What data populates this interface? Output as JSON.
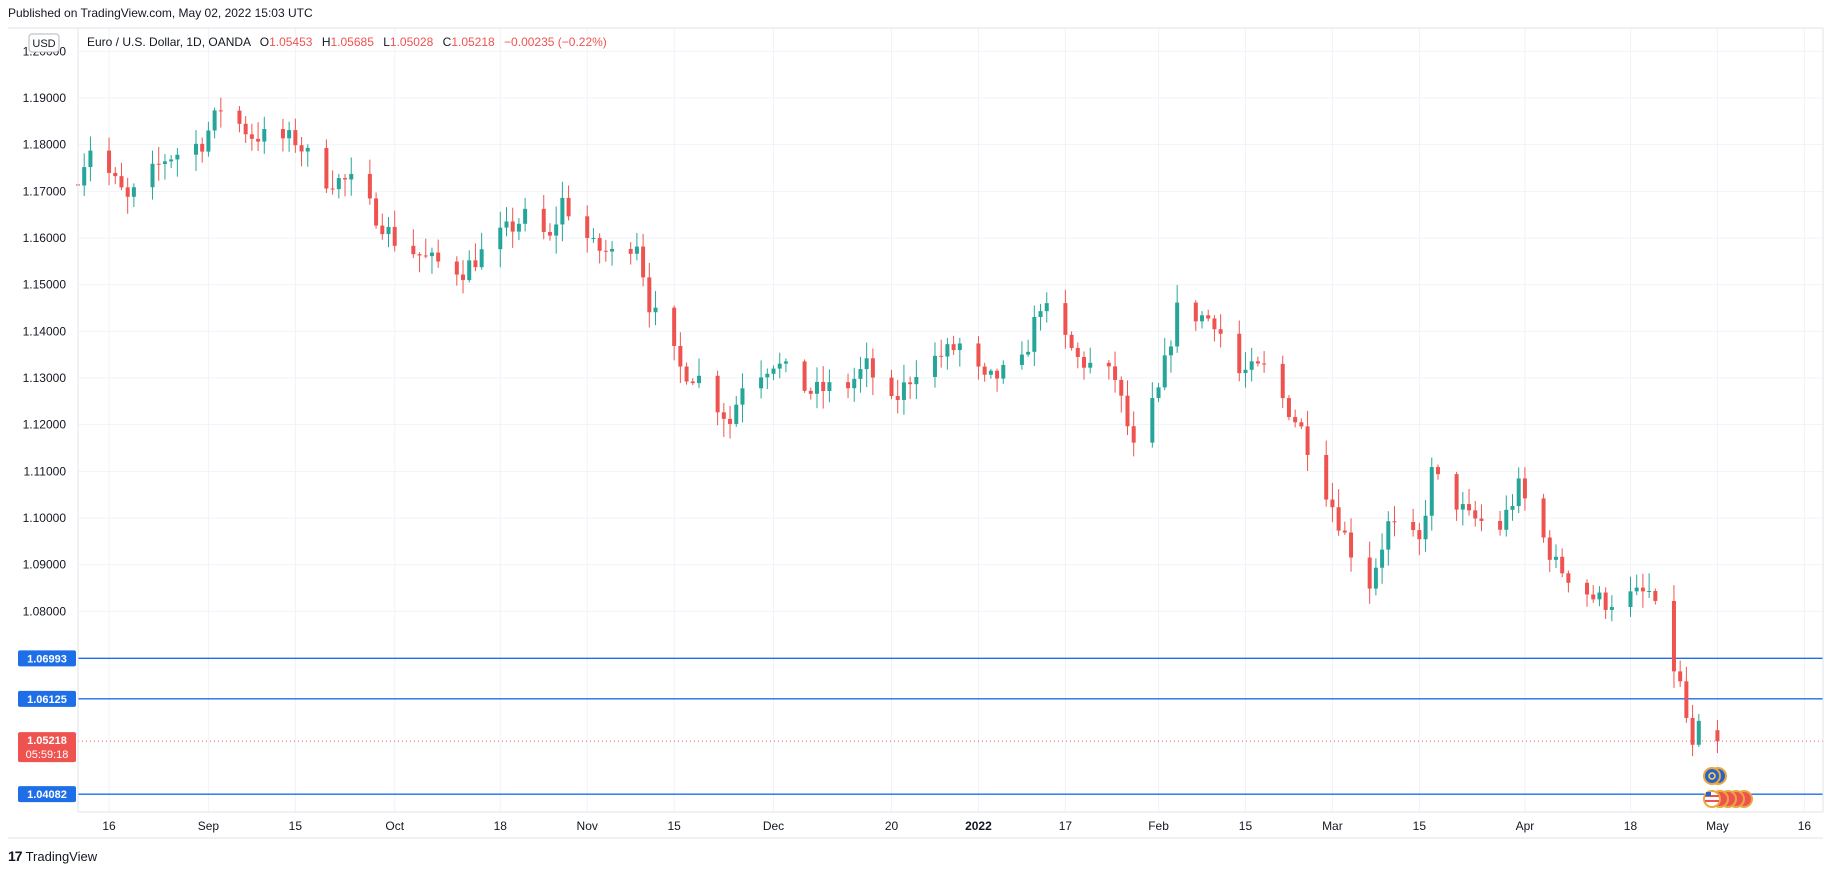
{
  "published": "Published on TradingView.com, May 02, 2022 15:03 UTC",
  "brand": "TradingView",
  "chart_data": {
    "type": "candlestick",
    "symbol_title": "Euro / U.S. Dollar, 1D, OANDA",
    "currency_badge": "USD",
    "ohlc_header": {
      "o_label": "O",
      "o": "1.05453",
      "h_label": "H",
      "h": "1.05685",
      "l_label": "L",
      "l": "1.05028",
      "c_label": "C",
      "c": "1.05218",
      "change": "−0.00235 (−0.22%)"
    },
    "ylim": [
      1.037,
      1.205
    ],
    "yticks": [
      "1.20000",
      "1.19000",
      "1.18000",
      "1.17000",
      "1.16000",
      "1.15000",
      "1.14000",
      "1.13000",
      "1.12000",
      "1.11000",
      "1.10000",
      "1.09000",
      "1.08000"
    ],
    "xlim": [
      "2021-08-11",
      "2022-05-19"
    ],
    "xticks": [
      {
        "date": "2021-08-16",
        "label": "16"
      },
      {
        "date": "2021-09-01",
        "label": "Sep"
      },
      {
        "date": "2021-09-15",
        "label": "15"
      },
      {
        "date": "2021-10-01",
        "label": "Oct"
      },
      {
        "date": "2021-10-18",
        "label": "18"
      },
      {
        "date": "2021-11-01",
        "label": "Nov"
      },
      {
        "date": "2021-11-15",
        "label": "15"
      },
      {
        "date": "2021-12-01",
        "label": "Dec"
      },
      {
        "date": "2021-12-20",
        "label": "20"
      },
      {
        "date": "2022-01-03",
        "label": "2022",
        "bold": true
      },
      {
        "date": "2022-01-17",
        "label": "17"
      },
      {
        "date": "2022-02-01",
        "label": "Feb"
      },
      {
        "date": "2022-02-15",
        "label": "15"
      },
      {
        "date": "2022-03-01",
        "label": "Mar"
      },
      {
        "date": "2022-03-15",
        "label": "15"
      },
      {
        "date": "2022-04-01",
        "label": "Apr"
      },
      {
        "date": "2022-04-18",
        "label": "18"
      },
      {
        "date": "2022-05-02",
        "label": "May"
      },
      {
        "date": "2022-05-16",
        "label": "16"
      }
    ],
    "horizontal_lines": [
      {
        "value": 1.06993,
        "label": "1.06993",
        "color": "#1e6ee8"
      },
      {
        "value": 1.06125,
        "label": "1.06125",
        "color": "#1e6ee8"
      },
      {
        "value": 1.04082,
        "label": "1.04082",
        "color": "#1e6ee8"
      }
    ],
    "last_price": {
      "value": 1.05218,
      "label": "1.05218",
      "countdown": "05:59:18",
      "color": "#ef5350"
    },
    "colors": {
      "up": "#26a69a",
      "down": "#ef5350",
      "grid": "#f0f3fa",
      "axis": "#e0e3eb",
      "hline": "#1e6ee8"
    },
    "anchors": [
      {
        "date": "2021-08-11",
        "close": 1.1735
      },
      {
        "date": "2021-08-13",
        "close": 1.1795
      },
      {
        "date": "2021-08-19",
        "close": 1.168
      },
      {
        "date": "2021-08-25",
        "close": 1.177
      },
      {
        "date": "2021-08-31",
        "close": 1.1805
      },
      {
        "date": "2021-09-03",
        "close": 1.188
      },
      {
        "date": "2021-09-08",
        "close": 1.182
      },
      {
        "date": "2021-09-15",
        "close": 1.181
      },
      {
        "date": "2021-09-20",
        "close": 1.1725
      },
      {
        "date": "2021-09-24",
        "close": 1.172
      },
      {
        "date": "2021-10-01",
        "close": 1.1595
      },
      {
        "date": "2021-10-06",
        "close": 1.1555
      },
      {
        "date": "2021-10-12",
        "close": 1.153
      },
      {
        "date": "2021-10-18",
        "close": 1.1605
      },
      {
        "date": "2021-10-22",
        "close": 1.1645
      },
      {
        "date": "2021-10-26",
        "close": 1.1595
      },
      {
        "date": "2021-10-28",
        "close": 1.168
      },
      {
        "date": "2021-11-02",
        "close": 1.158
      },
      {
        "date": "2021-11-05",
        "close": 1.1565
      },
      {
        "date": "2021-11-09",
        "close": 1.1595
      },
      {
        "date": "2021-11-11",
        "close": 1.146
      },
      {
        "date": "2021-11-16",
        "close": 1.132
      },
      {
        "date": "2021-11-19",
        "close": 1.13
      },
      {
        "date": "2021-11-24",
        "close": 1.1205
      },
      {
        "date": "2021-11-26",
        "close": 1.129
      },
      {
        "date": "2021-12-01",
        "close": 1.1335
      },
      {
        "date": "2021-12-07",
        "close": 1.127
      },
      {
        "date": "2021-12-13",
        "close": 1.1285
      },
      {
        "date": "2021-12-16",
        "close": 1.1325
      },
      {
        "date": "2021-12-20",
        "close": 1.124
      },
      {
        "date": "2021-12-24",
        "close": 1.132
      },
      {
        "date": "2021-12-31",
        "close": 1.137
      },
      {
        "date": "2022-01-04",
        "close": 1.129
      },
      {
        "date": "2022-01-10",
        "close": 1.133
      },
      {
        "date": "2022-01-13",
        "close": 1.146
      },
      {
        "date": "2022-01-19",
        "close": 1.134
      },
      {
        "date": "2022-01-25",
        "close": 1.13
      },
      {
        "date": "2022-01-28",
        "close": 1.1145
      },
      {
        "date": "2022-02-01",
        "close": 1.127
      },
      {
        "date": "2022-02-04",
        "close": 1.1445
      },
      {
        "date": "2022-02-10",
        "close": 1.1425
      },
      {
        "date": "2022-02-14",
        "close": 1.131
      },
      {
        "date": "2022-02-18",
        "close": 1.132
      },
      {
        "date": "2022-02-24",
        "close": 1.119
      },
      {
        "date": "2022-03-04",
        "close": 1.093
      },
      {
        "date": "2022-03-07",
        "close": 1.086
      },
      {
        "date": "2022-03-10",
        "close": 1.0985
      },
      {
        "date": "2022-03-15",
        "close": 1.0945
      },
      {
        "date": "2022-03-17",
        "close": 1.1095
      },
      {
        "date": "2022-03-23",
        "close": 1.1
      },
      {
        "date": "2022-03-28",
        "close": 1.098
      },
      {
        "date": "2022-03-31",
        "close": 1.1065
      },
      {
        "date": "2022-04-06",
        "close": 1.09
      },
      {
        "date": "2022-04-12",
        "close": 1.083
      },
      {
        "date": "2022-04-14",
        "close": 1.082
      },
      {
        "date": "2022-04-21",
        "close": 1.084
      },
      {
        "date": "2022-04-26",
        "close": 1.064
      },
      {
        "date": "2022-04-28",
        "close": 1.05
      },
      {
        "date": "2022-04-29",
        "close": 1.0545
      },
      {
        "date": "2022-05-02",
        "close": 1.05218
      }
    ]
  }
}
